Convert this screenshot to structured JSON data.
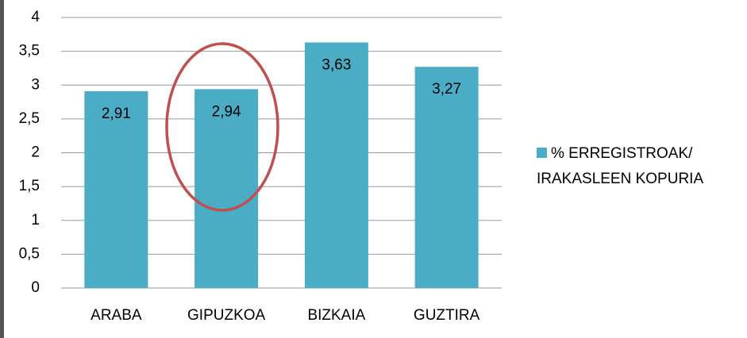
{
  "chart_data": {
    "type": "bar",
    "categories": [
      "ARABA",
      "GIPUZKOA",
      "BIZKAIA",
      "GUZTIRA"
    ],
    "series": [
      {
        "name": "% ERREGISTROAK/ IRAKASLEEN KOPURIA",
        "color": "#4bacc6",
        "values": [
          2.91,
          2.94,
          3.63,
          3.27
        ],
        "value_labels": [
          "2,91",
          "2,94",
          "3,63",
          "3,27"
        ]
      }
    ],
    "ylim": [
      0,
      4
    ],
    "yticks": [
      0,
      {
        "value": 0.5,
        "label": "0,5"
      },
      1,
      {
        "value": 1.5,
        "label": "1,5"
      },
      2,
      {
        "value": 2.5,
        "label": "2,5"
      },
      3,
      {
        "value": 3.5,
        "label": "3,5"
      },
      4
    ],
    "grid": true,
    "legend": "right"
  }
}
